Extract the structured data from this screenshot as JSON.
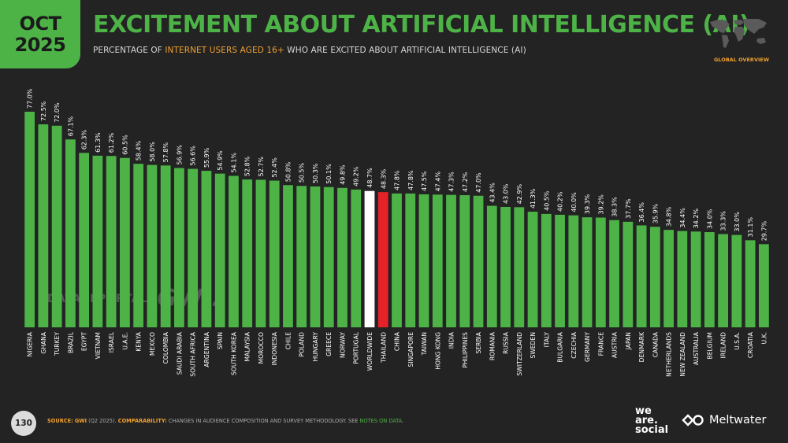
{
  "badge": {
    "month": "OCT",
    "year": "2025"
  },
  "title": "EXCITEMENT ABOUT ARTIFICIAL INTELLIGENCE (AI)",
  "subtitle": {
    "pre": "PERCENTAGE OF ",
    "highlight": "INTERNET USERS AGED 16+",
    "post": " WHO ARE EXCITED ABOUT ARTIFICIAL INTELLIGENCE (AI)"
  },
  "overview_label": "GLOBAL OVERVIEW",
  "watermark": {
    "datareportal": "DATAREPORTAL",
    "gwi": "GWI."
  },
  "footer": {
    "page": "130",
    "source_key": "SOURCE:",
    "source_brand": "GWI",
    "source_text": " (Q2 2025). ",
    "comparability_key": "COMPARABILITY:",
    "comparability_text": " CHANGES IN AUDIENCE COMPOSITION AND SURVEY METHODOLOGY. SEE ",
    "notes_link": "NOTES ON DATA",
    "notes_end": "."
  },
  "logos": {
    "was_line1": "we",
    "was_line2": "are.",
    "was_line3": "social",
    "meltwater": "Meltwater"
  },
  "colors": {
    "bar": "#4db347",
    "worldwide": "#ffffff",
    "highlight": "#e42228",
    "accent": "#f0a030"
  },
  "chart_data": {
    "type": "bar",
    "ylim": [
      0,
      80
    ],
    "value_suffix": "%",
    "grid": false,
    "categories": [
      "NIGERIA",
      "GHANA",
      "TURKEY",
      "BRAZIL",
      "EGYPT",
      "VIETNAM",
      "ISRAEL",
      "U.A.E.",
      "KENYA",
      "MEXICO",
      "COLOMBIA",
      "SAUDI ARABIA",
      "SOUTH AFRICA",
      "ARGENTINA",
      "SPAIN",
      "SOUTH KOREA",
      "MALAYSIA",
      "MOROCCO",
      "INDONESIA",
      "CHILE",
      "POLAND",
      "HUNGARY",
      "GREECE",
      "NORWAY",
      "PORTUGAL",
      "WORLDWIDE",
      "THAILAND",
      "CHINA",
      "SINGAPORE",
      "TAIWAN",
      "HONG KONG",
      "INDIA",
      "PHILIPPINES",
      "SERBIA",
      "ROMANIA",
      "RUSSIA",
      "SWITZERLAND",
      "SWEDEN",
      "ITALY",
      "BULGARIA",
      "CZECHIA",
      "GERMANY",
      "FRANCE",
      "AUSTRIA",
      "JAPAN",
      "DENMARK",
      "CANADA",
      "NETHERLANDS",
      "NEW ZEALAND",
      "AUSTRALIA",
      "BELGIUM",
      "IRELAND",
      "U.S.A.",
      "CROATIA",
      "U.K."
    ],
    "values": [
      77.0,
      72.5,
      72.0,
      67.1,
      62.3,
      61.3,
      61.2,
      60.5,
      58.4,
      58.0,
      57.8,
      56.9,
      56.6,
      55.9,
      54.9,
      54.1,
      52.8,
      52.7,
      52.4,
      50.8,
      50.5,
      50.3,
      50.1,
      49.8,
      49.2,
      48.7,
      48.3,
      47.8,
      47.8,
      47.5,
      47.4,
      47.3,
      47.2,
      47.0,
      43.4,
      43.0,
      42.9,
      41.3,
      40.5,
      40.2,
      40.0,
      39.3,
      39.2,
      38.3,
      37.7,
      36.4,
      35.9,
      34.8,
      34.4,
      34.2,
      34.0,
      33.3,
      33.0,
      31.1,
      29.7
    ],
    "highlight_categories": {
      "WORLDWIDE": "worldwide",
      "THAILAND": "highlight"
    }
  }
}
